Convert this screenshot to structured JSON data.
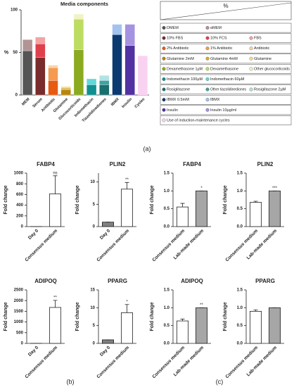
{
  "panel_labels": [
    "(a)",
    "(b)",
    "(c)"
  ],
  "chart_data": [
    {
      "type": "stacked_bar",
      "title": "Media components",
      "ylabel": "%",
      "legend_header": "%",
      "categories": [
        "MEM",
        "Serum",
        "Antibiotic",
        "Glutamine",
        "Glucocorticoids",
        "Indomethacin",
        "Tiazolidinediones",
        "IBMX",
        "Insulin",
        "Cycles"
      ],
      "ylim": [
        0,
        100
      ],
      "yticks": [
        0,
        50,
        100
      ],
      "series": [
        {
          "name": "DMEM",
          "color": "#555555",
          "values": [
            52,
            null,
            null,
            null,
            null,
            null,
            null,
            null,
            null,
            null
          ]
        },
        {
          "name": "αMEM",
          "color": "#b39494",
          "values": [
            13,
            null,
            null,
            null,
            null,
            null,
            null,
            null,
            null,
            null
          ]
        },
        {
          "name": "10% FBS",
          "color": "#7a2b2b",
          "values": [
            null,
            44,
            null,
            null,
            null,
            null,
            null,
            null,
            null,
            null
          ]
        },
        {
          "name": "10% FCS",
          "color": "#e0404c",
          "values": [
            null,
            16,
            null,
            null,
            null,
            null,
            null,
            null,
            null,
            null
          ]
        },
        {
          "name": "FBS",
          "color": "#f2a3a3",
          "values": [
            null,
            8,
            null,
            null,
            null,
            null,
            null,
            null,
            null,
            null
          ]
        },
        {
          "name": "2% Antibiotic",
          "color": "#e85a10",
          "values": [
            null,
            null,
            17,
            null,
            null,
            null,
            null,
            null,
            null,
            null
          ]
        },
        {
          "name": "1% Antibiotic",
          "color": "#f59a50",
          "values": [
            null,
            null,
            15,
            null,
            null,
            null,
            null,
            null,
            null,
            null
          ]
        },
        {
          "name": "Antibiotic",
          "color": "#fbd3a5",
          "values": [
            null,
            null,
            3,
            null,
            null,
            null,
            null,
            null,
            null,
            null
          ]
        },
        {
          "name": "Glutamine 2mM",
          "color": "#b8860b",
          "values": [
            null,
            null,
            null,
            6,
            null,
            null,
            null,
            null,
            null,
            null
          ]
        },
        {
          "name": "Glutamine 4mM",
          "color": "#d6ac35",
          "values": [
            null,
            null,
            null,
            2,
            null,
            null,
            null,
            null,
            null,
            null
          ]
        },
        {
          "name": "Glutamine",
          "color": "#f2e295",
          "values": [
            null,
            null,
            null,
            2,
            null,
            null,
            null,
            null,
            null,
            null
          ]
        },
        {
          "name": "Dexamethasone 1µM",
          "color": "#8aaa20",
          "values": [
            null,
            null,
            null,
            null,
            53,
            null,
            null,
            null,
            null,
            null
          ]
        },
        {
          "name": "Dexamethasone",
          "color": "#bcdc62",
          "values": [
            null,
            null,
            null,
            null,
            36,
            null,
            null,
            null,
            null,
            null
          ]
        },
        {
          "name": "Other glucocorticoids",
          "color": "#f2f2c4",
          "values": [
            null,
            null,
            null,
            null,
            6,
            null,
            null,
            null,
            null,
            null
          ]
        },
        {
          "name": "Indomethacin 100µM",
          "color": "#109090",
          "values": [
            null,
            null,
            null,
            null,
            null,
            12,
            null,
            null,
            null,
            null
          ]
        },
        {
          "name": "Indomethacin 60µM",
          "color": "#62d8d8",
          "values": [
            null,
            null,
            null,
            null,
            null,
            7,
            null,
            null,
            null,
            null
          ]
        },
        {
          "name": "Rosiglitazone",
          "color": "#1a6f6f",
          "values": [
            null,
            null,
            null,
            null,
            null,
            null,
            12,
            null,
            null,
            null
          ]
        },
        {
          "name": "Other tiazolidinediones",
          "color": "#3fa3a3",
          "values": [
            null,
            null,
            null,
            null,
            null,
            null,
            5,
            null,
            null,
            null
          ]
        },
        {
          "name": "Rosiglitazone 2µM",
          "color": "#b3e2e2",
          "values": [
            null,
            null,
            null,
            null,
            null,
            null,
            6,
            null,
            null,
            null
          ]
        },
        {
          "name": "IBMX 0.5mM",
          "color": "#0b3a70",
          "values": [
            null,
            null,
            null,
            null,
            null,
            null,
            null,
            71,
            null,
            null
          ]
        },
        {
          "name": "IBMX",
          "color": "#a3c2f0",
          "values": [
            null,
            null,
            null,
            null,
            null,
            null,
            null,
            12,
            null,
            null
          ]
        },
        {
          "name": "Insulin",
          "color": "#5232a2",
          "values": [
            null,
            null,
            null,
            null,
            null,
            null,
            null,
            null,
            58,
            null
          ]
        },
        {
          "name": "Insulin 10µg/ml",
          "color": "#a593e2",
          "values": [
            null,
            null,
            null,
            null,
            null,
            null,
            null,
            null,
            25,
            null
          ]
        },
        {
          "name": "Use of induction-maintenance cycles",
          "color": "#f9d2f2",
          "values": [
            null,
            null,
            null,
            null,
            null,
            null,
            null,
            null,
            null,
            46
          ]
        }
      ]
    },
    {
      "type": "bar",
      "title": "FABP4",
      "ylabel": "Fold change",
      "categories": [
        "Day 0",
        "Consensus medium"
      ],
      "values": [
        1,
        610
      ],
      "errors": [
        0,
        340
      ],
      "colors": [
        "#808080",
        "#ffffff"
      ],
      "sig_labels": [
        null,
        "ns"
      ],
      "ylim": [
        0,
        1000
      ],
      "yticks": [
        0,
        200,
        400,
        600,
        800,
        1000
      ]
    },
    {
      "type": "bar",
      "title": "PLIN2",
      "ylabel": "Fold change",
      "categories": [
        "Day 0",
        "Consensus medium"
      ],
      "values": [
        1,
        8.4
      ],
      "errors": [
        0,
        1.5
      ],
      "colors": [
        "#808080",
        "#ffffff"
      ],
      "sig_labels": [
        null,
        "**"
      ],
      "ylim": [
        0,
        12
      ],
      "yticks": [
        0,
        5,
        10
      ]
    },
    {
      "type": "bar",
      "title": "FABP4",
      "ylabel": "Fold change",
      "categories": [
        "Consensus medium",
        "Lab-made medium"
      ],
      "values": [
        0.55,
        1.0
      ],
      "errors": [
        0.1,
        0
      ],
      "colors": [
        "#ffffff",
        "#a6a6a6"
      ],
      "sig_labels": [
        null,
        "*"
      ],
      "ylim": [
        0,
        1.5
      ],
      "yticks": [
        {
          "value": 0,
          "label": "0.0"
        },
        0.5,
        {
          "value": 1,
          "label": "1.0"
        },
        1.5
      ]
    },
    {
      "type": "bar",
      "title": "PLIN2",
      "ylabel": "Fold change",
      "categories": [
        "Consensus medium",
        "Lab-made medium"
      ],
      "values": [
        0.68,
        1.0
      ],
      "errors": [
        0.03,
        0
      ],
      "colors": [
        "#ffffff",
        "#a6a6a6"
      ],
      "sig_labels": [
        null,
        "***"
      ],
      "ylim": [
        0,
        1.5
      ],
      "yticks": [
        {
          "value": 0,
          "label": "0.0"
        },
        0.5,
        {
          "value": 1,
          "label": "1.0"
        },
        1.5
      ]
    },
    {
      "type": "bar",
      "title": "ADIPOQ",
      "ylabel": "Fold change",
      "categories": [
        "Day 0",
        "Consensus medium"
      ],
      "values": [
        1,
        1680
      ],
      "errors": [
        0,
        330
      ],
      "colors": [
        "#808080",
        "#ffffff"
      ],
      "sig_labels": [
        null,
        "**"
      ],
      "ylim": [
        0,
        2500
      ],
      "yticks": [
        0,
        500,
        1000,
        1500,
        2000,
        2500
      ]
    },
    {
      "type": "bar",
      "title": "PPARG",
      "ylabel": "Fold change",
      "categories": [
        "Day 0",
        "Consensus medium"
      ],
      "values": [
        1,
        8.6
      ],
      "errors": [
        0,
        2.3
      ],
      "colors": [
        "#808080",
        "#ffffff"
      ],
      "sig_labels": [
        null,
        "*"
      ],
      "ylim": [
        0,
        15
      ],
      "yticks": [
        0,
        5,
        10,
        15
      ]
    },
    {
      "type": "bar",
      "title": "ADIPOQ",
      "ylabel": "Fold change",
      "categories": [
        "Consensus medium",
        "Lab-made medium"
      ],
      "values": [
        0.63,
        1.0
      ],
      "errors": [
        0.05,
        0
      ],
      "colors": [
        "#ffffff",
        "#a6a6a6"
      ],
      "sig_labels": [
        null,
        "**"
      ],
      "ylim": [
        0,
        1.5
      ],
      "yticks": [
        {
          "value": 0,
          "label": "0.0"
        },
        0.5,
        {
          "value": 1,
          "label": "1.0"
        },
        1.5
      ]
    },
    {
      "type": "bar",
      "title": "PPARG",
      "ylabel": "Fold change",
      "categories": [
        "Consensus medium",
        "Lab-made medium"
      ],
      "values": [
        0.9,
        1.0
      ],
      "errors": [
        0.04,
        0
      ],
      "colors": [
        "#ffffff",
        "#a6a6a6"
      ],
      "sig_labels": [
        null,
        null
      ],
      "ylim": [
        0,
        1.5
      ],
      "yticks": [
        {
          "value": 0,
          "label": "0.0"
        },
        0.5,
        {
          "value": 1,
          "label": "1.0"
        },
        1.5
      ]
    }
  ]
}
